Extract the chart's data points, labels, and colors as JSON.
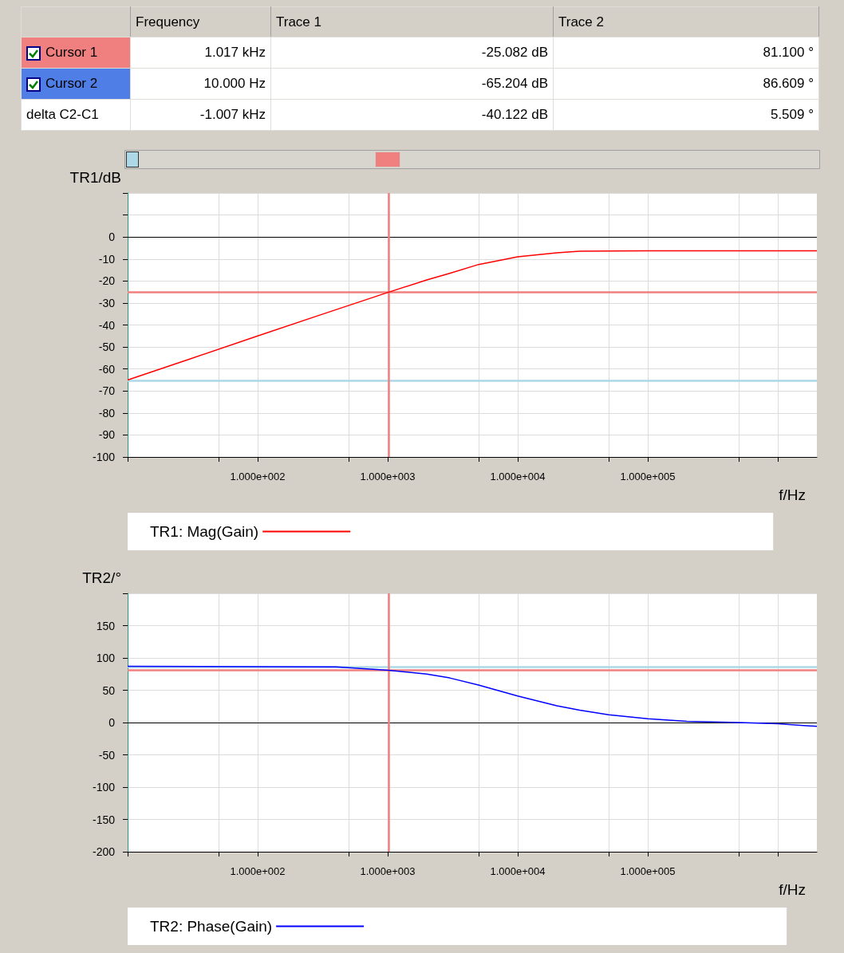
{
  "chart_data": [
    {
      "type": "other",
      "categories": [
        "Cursor 1",
        "Cursor 2",
        "delta C2-C1"
      ],
      "colors": [
        "#f08080",
        "#4f7fe6",
        null
      ],
      "series": [
        {
          "name": "Frequency",
          "values": [
            null,
            null,
            null
          ],
          "value_labels": [
            "1.017 kHz",
            "10.000 Hz",
            "-1.007 kHz"
          ]
        },
        {
          "name": "Trace 1",
          "values": [
            null,
            null,
            null
          ],
          "value_labels": [
            "-25.082 dB",
            "-65.204 dB",
            "-40.122 dB"
          ]
        },
        {
          "name": "Trace 2",
          "values": [
            null,
            null,
            null
          ],
          "value_labels": [
            "81.100 °",
            "86.609 °",
            "5.509 °"
          ]
        }
      ]
    },
    {
      "type": "line",
      "ylabel": "TR1/dB",
      "xlabel": "f/Hz",
      "log": "x",
      "grid": true,
      "legend": "bottom",
      "marker": "none",
      "line_style": "solid",
      "xlim": [
        10,
        2000000
      ],
      "xticks": [
        {
          "value": 10,
          "label": null
        },
        {
          "value": 50,
          "label": null
        },
        {
          "value": 100,
          "label": "1.000e+002"
        },
        {
          "value": 500,
          "label": null
        },
        {
          "value": 1000,
          "label": "1.000e+003"
        },
        {
          "value": 5000,
          "label": null
        },
        {
          "value": 10000,
          "label": "1.000e+004"
        },
        {
          "value": 50000,
          "label": null
        },
        {
          "value": 100000,
          "label": "1.000e+005"
        },
        {
          "value": 500000,
          "label": null
        },
        {
          "value": 1000000,
          "label": null
        }
      ],
      "ylim": [
        -100,
        20
      ],
      "yticks": [
        -100,
        -90,
        -80,
        -70,
        -60,
        -50,
        -40,
        -30,
        -20,
        -10,
        0,
        {
          "value": 10,
          "label": null
        },
        {
          "value": 20,
          "label": null
        }
      ],
      "series": [
        {
          "name": "TR1: Mag(Gain)",
          "color": "#ff0000",
          "x": [
            10,
            30,
            100,
            300,
            1017,
            2000,
            3000,
            5000,
            10000,
            20000,
            30000,
            100000,
            1000000,
            2000000
          ],
          "values": [
            -65,
            -55.5,
            -45,
            -35.5,
            -25.1,
            -19.5,
            -16.5,
            -12.5,
            -9,
            -7.2,
            -6.5,
            -6.3,
            -6.3,
            -6.3
          ]
        }
      ],
      "ref_lines": [
        {
          "axis": "y",
          "value": 0,
          "color": "#000000"
        },
        {
          "axis": "y",
          "value": -25.082,
          "color": "#f08080"
        },
        {
          "axis": "y",
          "value": -65.204,
          "color": "#add8e6"
        },
        {
          "axis": "x",
          "value": 1017,
          "color": "#f08080"
        }
      ]
    },
    {
      "type": "line",
      "ylabel": "TR2/°",
      "xlabel": "f/Hz",
      "log": "x",
      "grid": true,
      "legend": "bottom",
      "marker": "none",
      "line_style": "solid",
      "xlim": [
        10,
        2000000
      ],
      "xticks": [
        {
          "value": 10,
          "label": null
        },
        {
          "value": 50,
          "label": null
        },
        {
          "value": 100,
          "label": "1.000e+002"
        },
        {
          "value": 500,
          "label": null
        },
        {
          "value": 1000,
          "label": "1.000e+003"
        },
        {
          "value": 5000,
          "label": null
        },
        {
          "value": 10000,
          "label": "1.000e+004"
        },
        {
          "value": 50000,
          "label": null
        },
        {
          "value": 100000,
          "label": "1.000e+005"
        },
        {
          "value": 500000,
          "label": null
        },
        {
          "value": 1000000,
          "label": null
        }
      ],
      "ylim": [
        -200,
        200
      ],
      "yticks": [
        -200,
        -150,
        -100,
        -50,
        0,
        50,
        100,
        150,
        {
          "value": 200,
          "label": null
        }
      ],
      "series": [
        {
          "name": "TR2: Phase(Gain)",
          "color": "#0000ff",
          "x": [
            10,
            400,
            1017,
            2000,
            3000,
            5000,
            10000,
            20000,
            30000,
            50000,
            100000,
            200000,
            500000,
            1000000,
            2000000
          ],
          "values": [
            87,
            86,
            81,
            75,
            69,
            58,
            41,
            26,
            19,
            12,
            6,
            2,
            0,
            -2,
            -6
          ]
        }
      ],
      "ref_lines": [
        {
          "axis": "y",
          "value": 0,
          "color": "#000000"
        },
        {
          "axis": "y",
          "value": 86.609,
          "color": "#add8e6"
        },
        {
          "axis": "y",
          "value": 81.1,
          "color": "#f08080"
        },
        {
          "axis": "x",
          "value": 1017,
          "color": "#f08080"
        }
      ]
    }
  ]
}
